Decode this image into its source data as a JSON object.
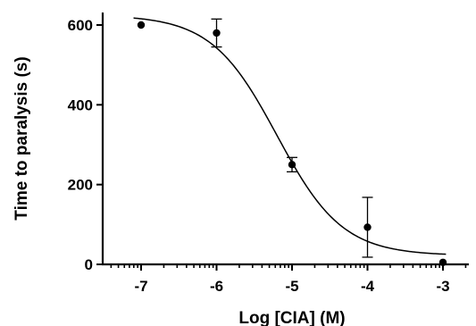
{
  "chart_data": {
    "type": "scatter",
    "xlabel": "Log [CIA] (M)",
    "ylabel": "Time to paralysis (s)",
    "xlim": [
      -7.5,
      -2.7
    ],
    "ylim": [
      0,
      630
    ],
    "x_ticks": [
      "-7",
      "-6",
      "-5",
      "-4",
      "-3"
    ],
    "y_ticks": [
      "0",
      "200",
      "400",
      "600"
    ],
    "x": [
      -7,
      -6,
      -5,
      -4,
      -3
    ],
    "y": [
      600,
      580,
      250,
      93,
      5
    ],
    "error": [
      0,
      35,
      18,
      75,
      0
    ],
    "fit": {
      "model": "four-parameter logistic",
      "bottom": 22,
      "top": 625,
      "log_ic50": -5.2,
      "hill_slope": -1.0
    },
    "grid": false,
    "legend": "none"
  }
}
